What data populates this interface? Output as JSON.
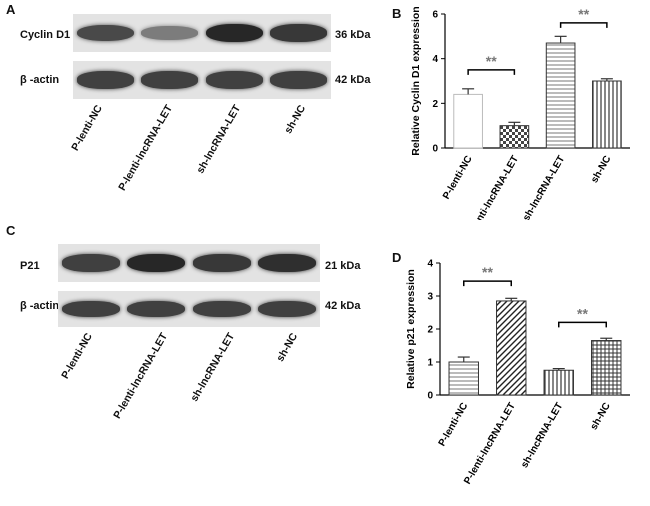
{
  "panels": {
    "a": {
      "letter": "A",
      "rows": [
        {
          "label": "Cyclin D1",
          "kda": "36 kDa",
          "intensity": [
            0.75,
            0.45,
            0.95,
            0.85
          ]
        },
        {
          "label": "β -actin",
          "kda": "42 kDa",
          "intensity": [
            0.8,
            0.8,
            0.8,
            0.8
          ]
        }
      ],
      "lanes": [
        "P-lenti-NC",
        "P-lenti-lncRNA-LET",
        "sh-lncRNA-LET",
        "sh-NC"
      ]
    },
    "b": {
      "letter": "B"
    },
    "c": {
      "letter": "C",
      "rows": [
        {
          "label": "P21",
          "kda": "21 kDa",
          "intensity": [
            0.8,
            0.95,
            0.85,
            0.9
          ]
        },
        {
          "label": "β -actin",
          "kda": "42 kDa",
          "intensity": [
            0.8,
            0.8,
            0.8,
            0.8
          ]
        }
      ],
      "lanes": [
        "P-lenti-NC",
        "P-lenti-lncRNA-LET",
        "sh-lncRNA-LET",
        "sh-NC"
      ]
    },
    "d": {
      "letter": "D"
    }
  },
  "chart_data": [
    {
      "type": "bar",
      "panel": "B",
      "ylabel": "Relative Cyclin D1 expression",
      "ylim": [
        0,
        6
      ],
      "yticks": [
        "0",
        "2",
        "4",
        "6"
      ],
      "categories": [
        "P-lenti-NC",
        "P-lenti-lncRNA-LET",
        "sh-lncRNA-LET",
        "sh-NC"
      ],
      "values": [
        2.4,
        1.0,
        4.7,
        3.0
      ],
      "errors": [
        0.25,
        0.15,
        0.3,
        0.1
      ],
      "patterns": [
        "none",
        "checker",
        "hlines",
        "vlines"
      ],
      "significance": [
        {
          "from": 0,
          "to": 1,
          "y": 3.5,
          "label": "**"
        },
        {
          "from": 2,
          "to": 3,
          "y": 5.6,
          "label": "**"
        }
      ]
    },
    {
      "type": "bar",
      "panel": "D",
      "ylabel": "Relative p21 expression",
      "ylim": [
        0,
        4
      ],
      "yticks": [
        "0",
        "1",
        "2",
        "3",
        "4"
      ],
      "categories": [
        "P-lenti-NC",
        "P-lenti-lncRNA-LET",
        "sh-lncRNA-LET",
        "sh-NC"
      ],
      "values": [
        1.0,
        2.85,
        0.75,
        1.65
      ],
      "errors": [
        0.15,
        0.08,
        0.05,
        0.07
      ],
      "patterns": [
        "hlines",
        "diag",
        "vlines",
        "grid"
      ],
      "significance": [
        {
          "from": 0,
          "to": 1,
          "y": 3.45,
          "label": "**"
        },
        {
          "from": 2,
          "to": 3,
          "y": 2.2,
          "label": "**"
        }
      ]
    }
  ]
}
